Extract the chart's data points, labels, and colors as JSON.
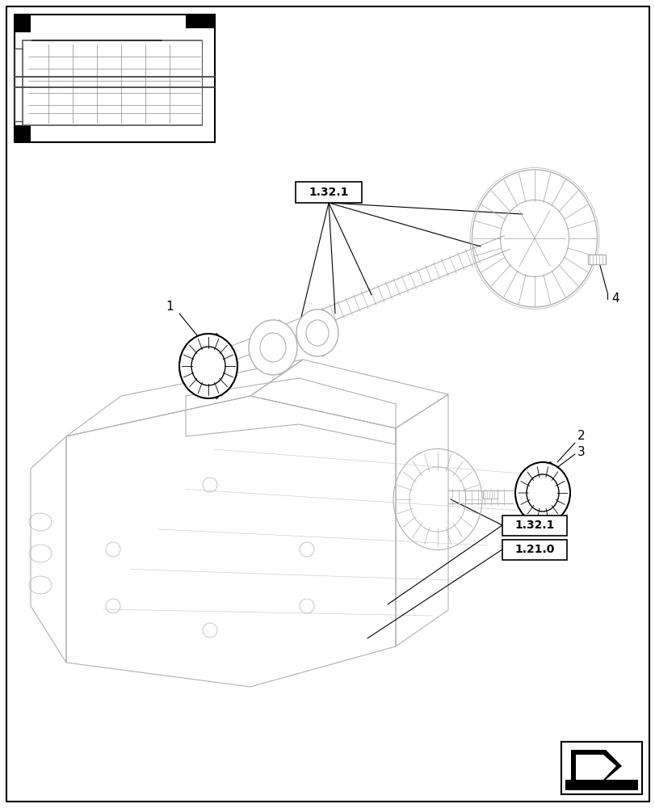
{
  "bg_color": "#ffffff",
  "lc": "#000000",
  "llc": "#b0b0b0",
  "lllc": "#d0d0d0",
  "page_width": 8.12,
  "page_height": 10.0,
  "font_size_label": 11,
  "font_size_ref": 10
}
